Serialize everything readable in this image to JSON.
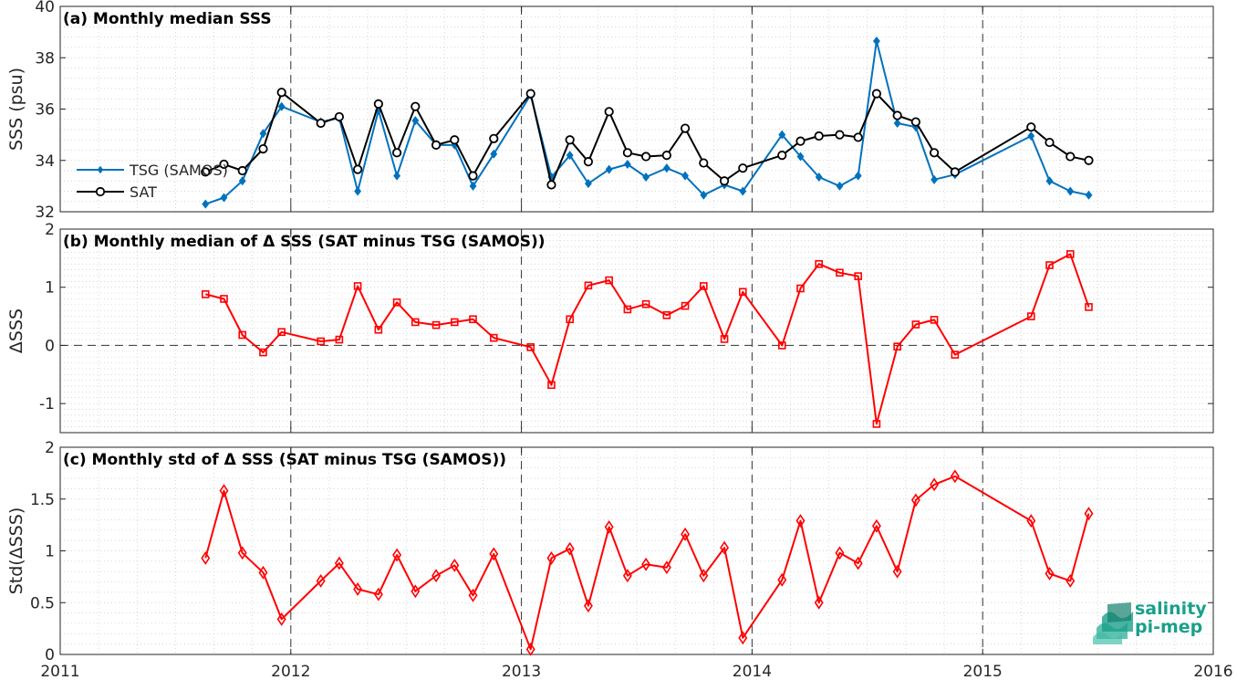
{
  "x_ticks": [
    "2011",
    "2012",
    "2013",
    "2014",
    "2015",
    "2016"
  ],
  "logo": {
    "line1": "salinity",
    "line2": "pi-mep",
    "color": "#1aa08a"
  },
  "colors": {
    "tsg": "#0072BD",
    "sat": "#000000",
    "delta": "#ff0000"
  },
  "chart_data": [
    {
      "type": "line",
      "title": "(a) Monthly median SSS",
      "ylabel": "SSS (psu)",
      "xlim": [
        2011,
        2016
      ],
      "ylim": [
        32,
        40
      ],
      "yticks": [
        "32",
        "34",
        "36",
        "38",
        "40"
      ],
      "grid": true,
      "legend_placement": "left",
      "series": [
        {
          "name": "TSG (SAMOS)",
          "marker": "diamond",
          "color": "#0072BD",
          "x": [
            2011.63,
            2011.71,
            2011.79,
            2011.88,
            2011.96,
            2012.13,
            2012.21,
            2012.29,
            2012.38,
            2012.46,
            2012.54,
            2012.63,
            2012.71,
            2012.79,
            2012.88,
            2013.04,
            2013.13,
            2013.21,
            2013.29,
            2013.38,
            2013.46,
            2013.54,
            2013.63,
            2013.71,
            2013.79,
            2013.88,
            2013.96,
            2014.13,
            2014.21,
            2014.29,
            2014.38,
            2014.46,
            2014.54,
            2014.63,
            2014.71,
            2014.79,
            2014.88,
            2015.21,
            2015.29,
            2015.38,
            2015.46
          ],
          "y": [
            32.3,
            32.55,
            33.2,
            35.05,
            36.1,
            35.5,
            35.65,
            32.8,
            35.95,
            33.4,
            35.55,
            34.6,
            34.6,
            33.0,
            34.25,
            36.55,
            33.35,
            34.2,
            33.1,
            33.65,
            33.85,
            33.35,
            33.7,
            33.4,
            32.65,
            33.05,
            32.8,
            35.0,
            34.15,
            33.35,
            33.0,
            33.4,
            38.65,
            35.45,
            35.3,
            33.25,
            33.45,
            34.95,
            33.2,
            32.8,
            32.65
          ]
        },
        {
          "name": "SAT",
          "marker": "circle",
          "color": "#000000",
          "x": [
            2011.63,
            2011.71,
            2011.79,
            2011.88,
            2011.96,
            2012.13,
            2012.21,
            2012.29,
            2012.38,
            2012.46,
            2012.54,
            2012.63,
            2012.71,
            2012.79,
            2012.88,
            2013.04,
            2013.13,
            2013.21,
            2013.29,
            2013.38,
            2013.46,
            2013.54,
            2013.63,
            2013.71,
            2013.79,
            2013.88,
            2013.96,
            2014.13,
            2014.21,
            2014.29,
            2014.38,
            2014.46,
            2014.54,
            2014.63,
            2014.71,
            2014.79,
            2014.88,
            2015.21,
            2015.29,
            2015.38,
            2015.46
          ],
          "y": [
            33.55,
            33.85,
            33.6,
            34.45,
            36.65,
            35.45,
            35.7,
            33.65,
            36.2,
            34.3,
            36.1,
            34.6,
            34.8,
            33.4,
            34.85,
            36.6,
            33.05,
            34.8,
            33.95,
            35.9,
            34.3,
            34.15,
            34.2,
            35.25,
            33.9,
            33.2,
            33.7,
            34.2,
            34.75,
            34.95,
            35.0,
            34.9,
            36.6,
            35.75,
            35.5,
            34.3,
            33.55,
            35.3,
            34.7,
            34.15,
            34.0
          ]
        }
      ]
    },
    {
      "type": "line",
      "title": "(b) Monthly median of Δ SSS (SAT minus TSG (SAMOS))",
      "ylabel": "ΔSSS",
      "xlim": [
        2011,
        2016
      ],
      "ylim": [
        -1.5,
        2
      ],
      "yticks": [
        "-1",
        "0",
        "1",
        "2"
      ],
      "grid": true,
      "zero_line": true,
      "series": [
        {
          "marker": "square",
          "color": "#ff0000",
          "x": [
            2011.63,
            2011.71,
            2011.79,
            2011.88,
            2011.96,
            2012.13,
            2012.21,
            2012.29,
            2012.38,
            2012.46,
            2012.54,
            2012.63,
            2012.71,
            2012.79,
            2012.88,
            2013.04,
            2013.13,
            2013.21,
            2013.29,
            2013.38,
            2013.46,
            2013.54,
            2013.63,
            2013.71,
            2013.79,
            2013.88,
            2013.96,
            2014.13,
            2014.21,
            2014.29,
            2014.38,
            2014.46,
            2014.54,
            2014.63,
            2014.71,
            2014.79,
            2014.88,
            2015.21,
            2015.29,
            2015.38,
            2015.46
          ],
          "y": [
            0.88,
            0.8,
            0.18,
            -0.12,
            0.23,
            0.07,
            0.1,
            1.02,
            0.27,
            0.74,
            0.4,
            0.35,
            0.4,
            0.45,
            0.13,
            -0.03,
            -0.68,
            0.45,
            1.03,
            1.12,
            0.62,
            0.71,
            0.52,
            0.68,
            1.02,
            0.11,
            0.92,
            0.0,
            0.98,
            1.4,
            1.25,
            1.19,
            -1.35,
            -0.02,
            0.36,
            0.44,
            -0.16,
            0.5,
            1.38,
            1.57,
            0.66
          ]
        }
      ]
    },
    {
      "type": "line",
      "title": "(c) Monthly std of Δ SSS (SAT minus TSG (SAMOS))",
      "ylabel": "Std(ΔSSS)",
      "xlim": [
        2011,
        2016
      ],
      "ylim": [
        0,
        2
      ],
      "yticks": [
        "0",
        "0.5",
        "1",
        "1.5",
        "2"
      ],
      "grid": true,
      "series": [
        {
          "marker": "diamond",
          "color": "#ff0000",
          "x": [
            2011.63,
            2011.71,
            2011.79,
            2011.88,
            2011.96,
            2012.13,
            2012.21,
            2012.29,
            2012.38,
            2012.46,
            2012.54,
            2012.63,
            2012.71,
            2012.79,
            2012.88,
            2013.04,
            2013.13,
            2013.21,
            2013.29,
            2013.38,
            2013.46,
            2013.54,
            2013.63,
            2013.71,
            2013.79,
            2013.88,
            2013.96,
            2014.13,
            2014.21,
            2014.29,
            2014.38,
            2014.46,
            2014.54,
            2014.63,
            2014.71,
            2014.79,
            2014.88,
            2015.21,
            2015.29,
            2015.38,
            2015.46
          ],
          "y": [
            0.93,
            1.58,
            0.98,
            0.79,
            0.34,
            0.71,
            0.88,
            0.63,
            0.58,
            0.96,
            0.61,
            0.76,
            0.86,
            0.57,
            0.97,
            0.05,
            0.93,
            1.02,
            0.47,
            1.23,
            0.76,
            0.87,
            0.84,
            1.16,
            0.76,
            1.03,
            0.16,
            0.72,
            1.29,
            0.5,
            0.98,
            0.88,
            1.24,
            0.8,
            1.49,
            1.64,
            1.72,
            1.29,
            0.78,
            0.71,
            1.36
          ]
        }
      ]
    }
  ]
}
